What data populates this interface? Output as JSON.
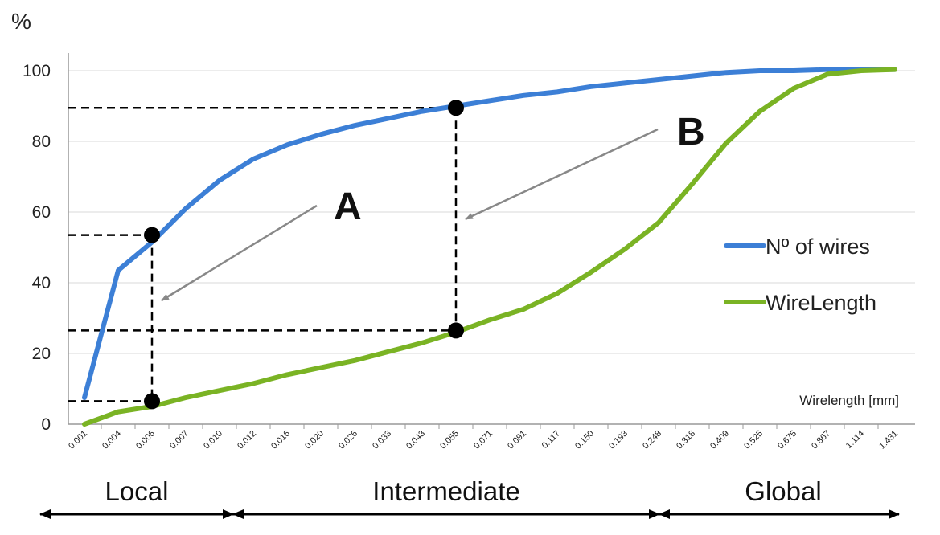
{
  "chart_data": {
    "type": "line",
    "ylabel": "%",
    "xlabel": "Wirelength [mm]",
    "ylim": [
      0,
      100
    ],
    "yticks": [
      "0",
      "20",
      "40",
      "60",
      "80",
      "100"
    ],
    "categories": [
      "0.001",
      "0.004",
      "0.006",
      "0.007",
      "0.010",
      "0.012",
      "0.016",
      "0.020",
      "0.026",
      "0.033",
      "0.043",
      "0.055",
      "0.071",
      "0.091",
      "0.117",
      "0.150",
      "0.193",
      "0.248",
      "0.318",
      "0.409",
      "0.525",
      "0.675",
      "0.867",
      "1.114",
      "1.431"
    ],
    "grid": "horizontal",
    "legend_position": "right",
    "series": [
      {
        "name": "Nº of wires",
        "color": "#3c7fd6",
        "values": [
          7.5,
          43.5,
          51.5,
          61,
          69,
          75,
          79,
          82,
          84.5,
          86.5,
          88.5,
          90,
          91.5,
          93,
          94,
          95.5,
          96.5,
          97.5,
          98.5,
          99.5,
          100,
          100,
          100.3,
          100.3,
          100.3
        ]
      },
      {
        "name": "WireLength",
        "color": "#7ab324",
        "values": [
          0,
          3.5,
          5,
          7.5,
          9.5,
          11.5,
          14,
          16,
          18,
          20.5,
          23,
          26,
          29.5,
          32.5,
          37,
          43,
          49.5,
          57,
          68,
          79.5,
          88.5,
          95,
          99,
          100,
          100.3
        ]
      }
    ],
    "markers": [
      {
        "x": "0.006",
        "y": 53.5
      },
      {
        "x": "0.006",
        "y": 6.5
      },
      {
        "x": "0.055",
        "y": 89.5
      },
      {
        "x": "0.055",
        "y": 26.5
      }
    ],
    "annotations": [
      {
        "label": "A",
        "points_to": {
          "x": "0.006",
          "y": 35
        }
      },
      {
        "label": "B",
        "points_to": {
          "x": "0.055",
          "y": 58
        }
      }
    ],
    "regions": [
      {
        "label": "Local",
        "from": "0.001",
        "to": "0.010"
      },
      {
        "label": "Intermediate",
        "from": "0.010",
        "to": "0.248"
      },
      {
        "label": "Global",
        "from": "0.248",
        "to": "1.431"
      }
    ]
  }
}
